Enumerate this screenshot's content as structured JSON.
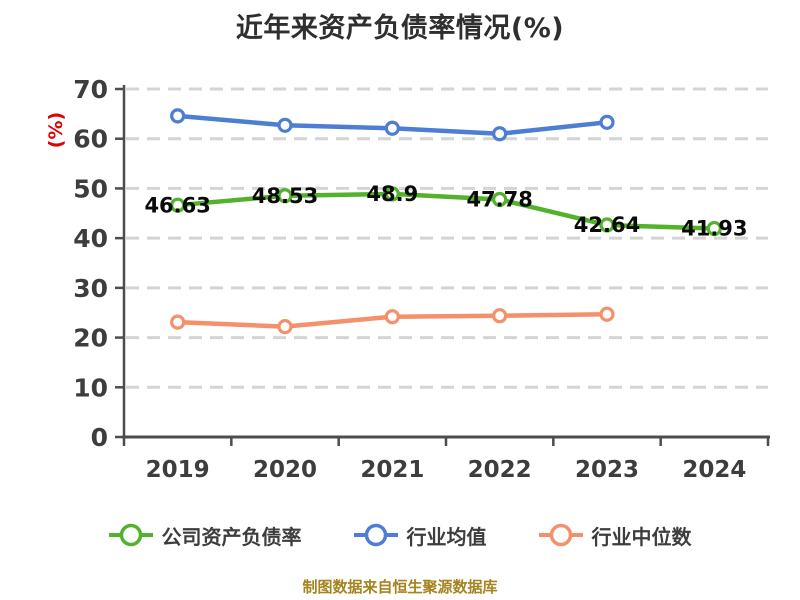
{
  "title": "近年来资产负债率情况(%)",
  "footer": "制图数据来自恒生聚源数据库",
  "colors": {
    "title_text": "#2f2f2f",
    "axis_line": "#4d4d4d",
    "tick_label": "#3d3d3d",
    "gridline": "#d4d4d4",
    "point_label": "#0a0a0a",
    "y_axis_name": "#e00000",
    "legend_text": "#3d3d3d",
    "footer_text": "#a5831e",
    "marker_fill": "#ffffff",
    "series_green": "#52b22b",
    "series_blue": "#4e7dd4",
    "series_orange": "#f4906a"
  },
  "chart_data": {
    "type": "line",
    "title": "近年来资产负债率情况(%)",
    "xlabel": "",
    "ylabel": "(%)",
    "ylim": [
      0,
      70
    ],
    "yticks": [
      0,
      10,
      20,
      30,
      40,
      50,
      60,
      70
    ],
    "grid": "horizontal-dashed",
    "legend_position": "bottom",
    "categories": [
      "2019",
      "2020",
      "2021",
      "2022",
      "2023",
      "2024"
    ],
    "series": [
      {
        "name": "公司资产负债率",
        "color": "#52b22b",
        "values": [
          46.63,
          48.53,
          48.9,
          47.78,
          42.64,
          41.93
        ],
        "point_labels": [
          "46.63",
          "48.53",
          "48.9",
          "47.78",
          "42.64",
          "41.93"
        ]
      },
      {
        "name": "行业均值",
        "color": "#4e7dd4",
        "values": [
          64.6,
          62.7,
          62.1,
          61.0,
          63.3,
          null
        ],
        "point_labels": null
      },
      {
        "name": "行业中位数",
        "color": "#f4906a",
        "values": [
          23.1,
          22.2,
          24.2,
          24.4,
          24.7,
          null
        ],
        "point_labels": null
      }
    ]
  }
}
